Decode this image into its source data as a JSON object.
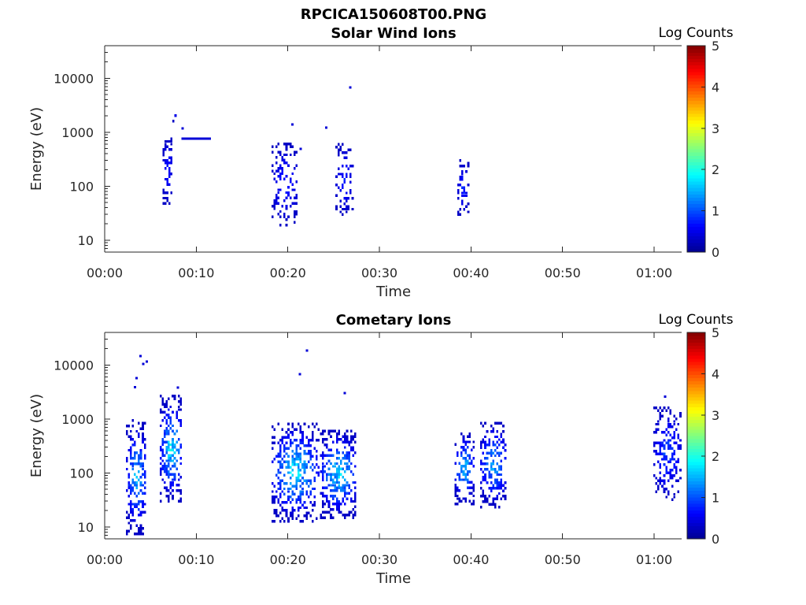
{
  "figure": {
    "title": "RPCICA150608T00.PNG"
  },
  "colors": {
    "colormap": [
      "#00008f",
      "#0000ff",
      "#0080ff",
      "#00ffff",
      "#80ff80",
      "#ffff00",
      "#ff8000",
      "#ff0000",
      "#800000"
    ],
    "axis": "#262626",
    "background": "#ffffff"
  },
  "chart_data": [
    {
      "type": "heatmap",
      "title": "Solar Wind Ions",
      "xlabel": "Time",
      "ylabel": "Energy (eV)",
      "x_unit": "minutes",
      "xlim": [
        0,
        63
      ],
      "ylim": [
        6,
        40000
      ],
      "yscale": "log",
      "xticks": [
        0,
        10,
        20,
        30,
        40,
        50,
        60
      ],
      "xtick_labels": [
        "00:00",
        "00:10",
        "00:20",
        "00:30",
        "00:40",
        "00:50",
        "01:00"
      ],
      "yticks": [
        10,
        100,
        1000,
        10000
      ],
      "ytick_labels": [
        "10",
        "100",
        "1000",
        "10000"
      ],
      "colorbar": {
        "label": "Log Counts",
        "range": [
          0,
          5
        ],
        "ticks": [
          "0",
          "1",
          "2",
          "3",
          "4",
          "5"
        ]
      },
      "clusters": [
        {
          "t": [
            6.3,
            7.3
          ],
          "e": [
            45,
            800
          ],
          "c": [
            0.3,
            0.9
          ],
          "d": 0.55,
          "s": 11
        },
        {
          "t": [
            7.4,
            7.8
          ],
          "e": [
            1200,
            3600
          ],
          "c": [
            0.3,
            0.6
          ],
          "d": 0.3,
          "s": 12
        },
        {
          "t": [
            18.2,
            21.0
          ],
          "e": [
            18,
            600
          ],
          "c": [
            0.3,
            0.9
          ],
          "d": 0.35,
          "s": 13
        },
        {
          "t": [
            25.2,
            27.0
          ],
          "e": [
            25,
            600
          ],
          "c": [
            0.3,
            0.9
          ],
          "d": 0.45,
          "s": 14
        },
        {
          "t": [
            38.5,
            39.6
          ],
          "e": [
            28,
            280
          ],
          "c": [
            0.3,
            1.0
          ],
          "d": 0.6,
          "s": 15
        }
      ],
      "lines": [
        {
          "t": [
            8.4,
            11.6
          ],
          "e": 760,
          "c": 0.4
        }
      ],
      "points": [
        {
          "t": 26.8,
          "e": 6700,
          "c": 0.4
        },
        {
          "t": 20.5,
          "e": 1380,
          "c": 0.4
        },
        {
          "t": 24.2,
          "e": 1220,
          "c": 0.4
        },
        {
          "t": 21.4,
          "e": 490,
          "c": 0.4
        },
        {
          "t": 8.5,
          "e": 1180,
          "c": 0.4
        }
      ]
    },
    {
      "type": "heatmap",
      "title": "Cometary Ions",
      "xlabel": "Time",
      "ylabel": "Energy (eV)",
      "x_unit": "minutes",
      "xlim": [
        0,
        63
      ],
      "ylim": [
        6,
        40000
      ],
      "yscale": "log",
      "xticks": [
        0,
        10,
        20,
        30,
        40,
        50,
        60
      ],
      "xtick_labels": [
        "00:00",
        "00:10",
        "00:20",
        "00:30",
        "00:40",
        "00:50",
        "01:00"
      ],
      "yticks": [
        10,
        100,
        1000,
        10000
      ],
      "ytick_labels": [
        "10",
        "100",
        "1000",
        "10000"
      ],
      "colorbar": {
        "label": "Log Counts",
        "range": [
          0,
          5
        ],
        "ticks": [
          "0",
          "1",
          "2",
          "3",
          "4",
          "5"
        ]
      },
      "clusters": [
        {
          "t": [
            2.3,
            4.5
          ],
          "e": [
            7,
            900
          ],
          "c": [
            0.3,
            1.9
          ],
          "d": 0.55,
          "s": 21
        },
        {
          "t": [
            6.0,
            8.4
          ],
          "e": [
            28,
            2500
          ],
          "c": [
            0.3,
            2.2
          ],
          "d": 0.6,
          "s": 22
        },
        {
          "t": [
            18.2,
            23.3
          ],
          "e": [
            12,
            800
          ],
          "c": [
            0.3,
            2.2
          ],
          "d": 0.55,
          "s": 23
        },
        {
          "t": [
            23.5,
            27.4
          ],
          "e": [
            14,
            600
          ],
          "c": [
            0.3,
            2.1
          ],
          "d": 0.6,
          "s": 24
        },
        {
          "t": [
            38.2,
            40.2
          ],
          "e": [
            25,
            550
          ],
          "c": [
            0.3,
            2.0
          ],
          "d": 0.6,
          "s": 25
        },
        {
          "t": [
            41.0,
            43.8
          ],
          "e": [
            22,
            850
          ],
          "c": [
            0.3,
            1.8
          ],
          "d": 0.55,
          "s": 26
        },
        {
          "t": [
            59.9,
            62.8
          ],
          "e": [
            30,
            1600
          ],
          "c": [
            0.3,
            1.2
          ],
          "d": 0.5,
          "s": 27
        }
      ],
      "lines": [],
      "points": [
        {
          "t": 3.9,
          "e": 14500,
          "c": 0.4
        },
        {
          "t": 4.2,
          "e": 10500,
          "c": 0.4
        },
        {
          "t": 4.6,
          "e": 11500,
          "c": 0.4
        },
        {
          "t": 3.5,
          "e": 5700,
          "c": 0.4
        },
        {
          "t": 3.3,
          "e": 3900,
          "c": 0.4
        },
        {
          "t": 22.1,
          "e": 18500,
          "c": 0.4
        },
        {
          "t": 21.3,
          "e": 6700,
          "c": 0.4
        },
        {
          "t": 26.2,
          "e": 3000,
          "c": 0.4
        },
        {
          "t": 8.0,
          "e": 3800,
          "c": 0.4
        },
        {
          "t": 61.2,
          "e": 2600,
          "c": 0.4
        }
      ]
    }
  ]
}
